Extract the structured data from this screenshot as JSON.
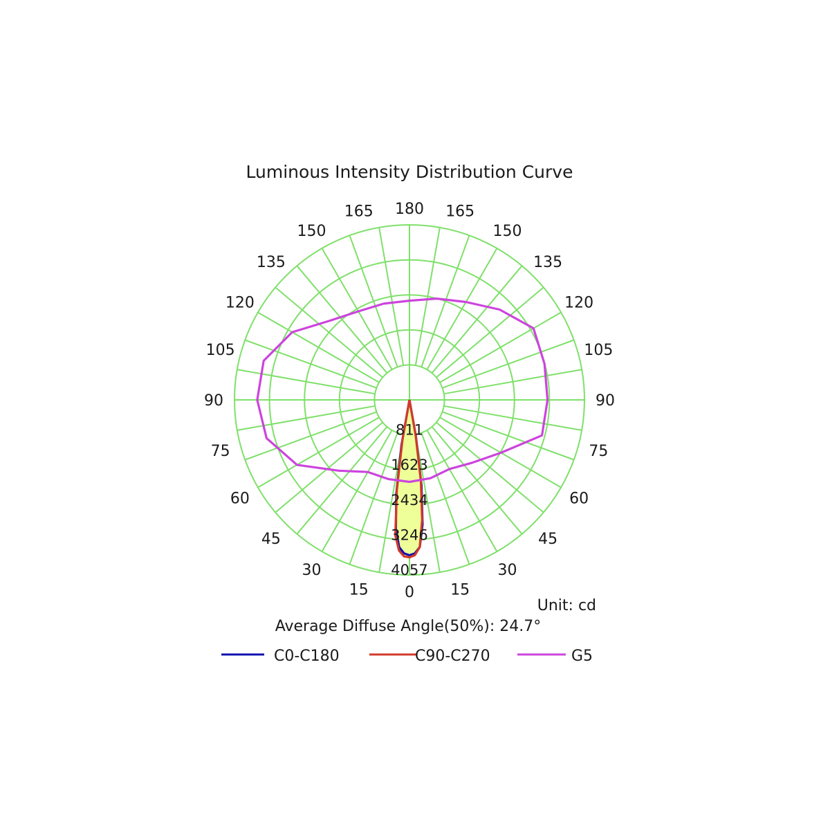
{
  "chart_data": {
    "type": "polar",
    "title": "Luminous Intensity Distribution Curve",
    "unit_label": "Unit: cd",
    "diffuse_label": "Average Diffuse Angle(50%): 24.7°",
    "max_radius_value": 4057,
    "radial_ticks": [
      "811",
      "1623",
      "2434",
      "3246",
      "4057"
    ],
    "radial_tick_values": [
      811,
      1623,
      2434,
      3246,
      4057
    ],
    "angle_ticks_left": [
      "0",
      "15",
      "30",
      "45",
      "60",
      "75",
      "90",
      "105",
      "120",
      "135",
      "150",
      "165",
      "180"
    ],
    "angle_ticks_right": [
      "15",
      "30",
      "45",
      "60",
      "75",
      "90",
      "105",
      "120",
      "135",
      "150",
      "165"
    ],
    "angle_step_deg": 15,
    "spoke_step_deg": 10,
    "grid": true,
    "colors": {
      "grid": "#7fe06a",
      "fill": "#eeff99",
      "c0": "#1010b0",
      "c90": "#d23a28",
      "g5": "#cc44dd"
    },
    "series": [
      {
        "name": "C0-C180",
        "color": "#1010b0",
        "angles": [
          -90,
          -10,
          -8,
          -6,
          -4,
          -2,
          0,
          2,
          4,
          6,
          8,
          10,
          90
        ],
        "values": [
          0,
          1060,
          2200,
          3000,
          3420,
          3560,
          3600,
          3560,
          3420,
          2900,
          2000,
          870,
          0
        ]
      },
      {
        "name": "C90-C270",
        "color": "#d23a28",
        "angles": [
          -90,
          -10,
          -8,
          -6,
          -4,
          -2,
          0,
          2,
          4,
          6,
          8,
          10,
          90
        ],
        "values": [
          0,
          920,
          2100,
          3150,
          3500,
          3630,
          3650,
          3600,
          3420,
          2800,
          1900,
          800,
          0
        ]
      },
      {
        "name": "G5",
        "color": "#cc44dd",
        "angles": [
          0,
          15,
          30,
          45,
          60,
          75,
          90,
          105,
          120,
          135,
          150,
          165,
          180,
          -165,
          -150,
          -135,
          -120,
          -105,
          -90,
          -75,
          -60,
          -45,
          -30,
          -15
        ],
        "values": [
          1900,
          1880,
          1850,
          2060,
          2450,
          3180,
          3200,
          3240,
          3320,
          2960,
          2620,
          2430,
          2300,
          2310,
          2370,
          2600,
          3140,
          3500,
          3530,
          3430,
          3010,
          2320,
          1930,
          1900
        ]
      }
    ],
    "legend": [
      {
        "label": "C0-C180",
        "color": "#1010b0"
      },
      {
        "label": "C90-C270",
        "color": "#d23a28"
      },
      {
        "label": "G5",
        "color": "#cc44dd"
      }
    ]
  }
}
